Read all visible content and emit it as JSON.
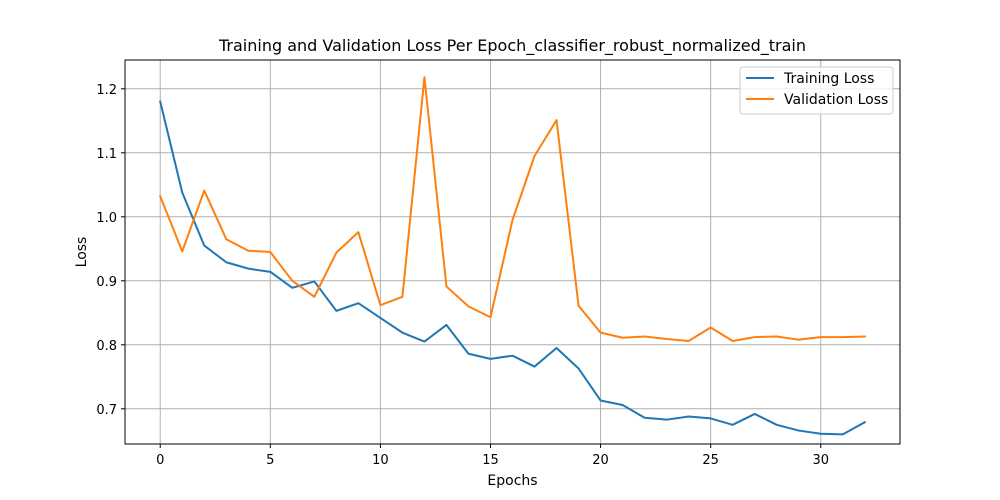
{
  "chart_data": {
    "type": "line",
    "title": "Training and Validation Loss Per Epoch_classifier_robust_normalized_train",
    "xlabel": "Epochs",
    "ylabel": "Loss",
    "xlim": [
      -1.6,
      33.6
    ],
    "ylim": [
      0.645,
      1.245
    ],
    "xticks": [
      0,
      5,
      10,
      15,
      20,
      25,
      30
    ],
    "yticks": [
      0.7,
      0.8,
      0.9,
      1.0,
      1.1,
      1.2
    ],
    "ytick_labels": [
      "0.7",
      "0.8",
      "0.9",
      "1.0",
      "1.1",
      "1.2"
    ],
    "grid": true,
    "legend_position": "upper right",
    "x": [
      0,
      1,
      2,
      3,
      4,
      5,
      6,
      7,
      8,
      9,
      10,
      11,
      12,
      13,
      14,
      15,
      16,
      17,
      18,
      19,
      20,
      21,
      22,
      23,
      24,
      25,
      26,
      27,
      28,
      29,
      30,
      31,
      32
    ],
    "series": [
      {
        "name": "Training Loss",
        "color": "#1f77b4",
        "values": [
          1.18,
          1.038,
          0.955,
          0.929,
          0.919,
          0.914,
          0.889,
          0.899,
          0.853,
          0.865,
          0.842,
          0.819,
          0.805,
          0.831,
          0.786,
          0.778,
          0.783,
          0.766,
          0.795,
          0.763,
          0.713,
          0.706,
          0.686,
          0.683,
          0.688,
          0.685,
          0.675,
          0.692,
          0.675,
          0.666,
          0.661,
          0.66,
          0.679
        ]
      },
      {
        "name": "Validation Loss",
        "color": "#ff7f0e",
        "values": [
          1.032,
          0.946,
          1.041,
          0.965,
          0.947,
          0.945,
          0.9,
          0.875,
          0.944,
          0.976,
          0.862,
          0.875,
          1.218,
          0.891,
          0.86,
          0.843,
          0.995,
          1.095,
          1.151,
          0.861,
          0.819,
          0.811,
          0.813,
          0.809,
          0.806,
          0.827,
          0.806,
          0.812,
          0.813,
          0.808,
          0.812,
          0.812,
          0.813
        ]
      }
    ]
  }
}
